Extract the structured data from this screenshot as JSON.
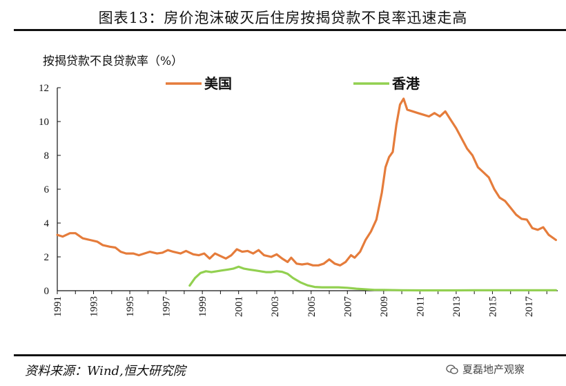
{
  "title": "图表13：房价泡沫破灭后住房按揭贷款不良率迅速走高",
  "source": "资料来源：Wind,恒大研究院",
  "watermark": "夏磊地产观察",
  "chart_data": {
    "type": "line",
    "ylabel": "按揭贷款不良贷款率（%）",
    "ylim": [
      0,
      12
    ],
    "yticks": [
      0,
      2,
      4,
      6,
      8,
      10,
      12
    ],
    "xlim": [
      1991,
      2018.6
    ],
    "xticks": [
      "1991",
      "1993",
      "1995",
      "1997",
      "1999",
      "2001",
      "2003",
      "2005",
      "2007",
      "2009",
      "2011",
      "2013",
      "2015",
      "2017"
    ],
    "legend_placement": "top",
    "series": [
      {
        "name": "美国",
        "color": "#E57C3B",
        "points": [
          [
            1991.0,
            3.3
          ],
          [
            1991.3,
            3.2
          ],
          [
            1991.7,
            3.4
          ],
          [
            1992.0,
            3.4
          ],
          [
            1992.4,
            3.1
          ],
          [
            1992.8,
            3.0
          ],
          [
            1993.2,
            2.9
          ],
          [
            1993.5,
            2.7
          ],
          [
            1993.9,
            2.6
          ],
          [
            1994.2,
            2.55
          ],
          [
            1994.5,
            2.3
          ],
          [
            1994.8,
            2.2
          ],
          [
            1995.2,
            2.2
          ],
          [
            1995.5,
            2.1
          ],
          [
            1995.8,
            2.2
          ],
          [
            1996.1,
            2.3
          ],
          [
            1996.5,
            2.2
          ],
          [
            1996.8,
            2.25
          ],
          [
            1997.1,
            2.4
          ],
          [
            1997.4,
            2.3
          ],
          [
            1997.8,
            2.2
          ],
          [
            1998.1,
            2.35
          ],
          [
            1998.5,
            2.15
          ],
          [
            1998.8,
            2.1
          ],
          [
            1999.1,
            2.2
          ],
          [
            1999.4,
            1.9
          ],
          [
            1999.7,
            2.2
          ],
          [
            2000.0,
            2.05
          ],
          [
            2000.3,
            1.9
          ],
          [
            2000.6,
            2.1
          ],
          [
            2000.9,
            2.45
          ],
          [
            2001.2,
            2.3
          ],
          [
            2001.5,
            2.35
          ],
          [
            2001.8,
            2.2
          ],
          [
            2002.1,
            2.4
          ],
          [
            2002.4,
            2.1
          ],
          [
            2002.8,
            2.0
          ],
          [
            2003.1,
            2.15
          ],
          [
            2003.4,
            1.9
          ],
          [
            2003.7,
            1.7
          ],
          [
            2003.9,
            1.95
          ],
          [
            2004.2,
            1.6
          ],
          [
            2004.5,
            1.55
          ],
          [
            2004.8,
            1.6
          ],
          [
            2005.1,
            1.5
          ],
          [
            2005.4,
            1.5
          ],
          [
            2005.7,
            1.6
          ],
          [
            2006.0,
            1.85
          ],
          [
            2006.3,
            1.6
          ],
          [
            2006.6,
            1.5
          ],
          [
            2006.9,
            1.7
          ],
          [
            2007.2,
            2.1
          ],
          [
            2007.4,
            1.95
          ],
          [
            2007.7,
            2.3
          ],
          [
            2008.0,
            3.0
          ],
          [
            2008.3,
            3.5
          ],
          [
            2008.6,
            4.2
          ],
          [
            2008.9,
            5.8
          ],
          [
            2009.1,
            7.3
          ],
          [
            2009.3,
            7.9
          ],
          [
            2009.5,
            8.2
          ],
          [
            2009.7,
            9.8
          ],
          [
            2009.9,
            11.0
          ],
          [
            2010.1,
            11.35
          ],
          [
            2010.3,
            10.7
          ],
          [
            2010.6,
            10.6
          ],
          [
            2010.9,
            10.5
          ],
          [
            2011.2,
            10.4
          ],
          [
            2011.5,
            10.3
          ],
          [
            2011.8,
            10.5
          ],
          [
            2012.1,
            10.3
          ],
          [
            2012.4,
            10.6
          ],
          [
            2012.7,
            10.1
          ],
          [
            2013.0,
            9.6
          ],
          [
            2013.3,
            9.0
          ],
          [
            2013.6,
            8.4
          ],
          [
            2013.9,
            8.0
          ],
          [
            2014.2,
            7.3
          ],
          [
            2014.5,
            7.0
          ],
          [
            2014.8,
            6.7
          ],
          [
            2015.1,
            6.0
          ],
          [
            2015.4,
            5.5
          ],
          [
            2015.7,
            5.3
          ],
          [
            2016.0,
            4.9
          ],
          [
            2016.3,
            4.5
          ],
          [
            2016.6,
            4.25
          ],
          [
            2016.9,
            4.2
          ],
          [
            2017.2,
            3.7
          ],
          [
            2017.5,
            3.6
          ],
          [
            2017.8,
            3.75
          ],
          [
            2018.1,
            3.3
          ],
          [
            2018.5,
            3.0
          ]
        ]
      },
      {
        "name": "香港",
        "color": "#92D050",
        "points": [
          [
            1998.3,
            0.3
          ],
          [
            1998.6,
            0.75
          ],
          [
            1998.9,
            1.05
          ],
          [
            1999.2,
            1.15
          ],
          [
            1999.5,
            1.1
          ],
          [
            1999.8,
            1.15
          ],
          [
            2000.1,
            1.2
          ],
          [
            2000.4,
            1.25
          ],
          [
            2000.7,
            1.3
          ],
          [
            2001.0,
            1.42
          ],
          [
            2001.3,
            1.3
          ],
          [
            2001.6,
            1.25
          ],
          [
            2001.9,
            1.2
          ],
          [
            2002.2,
            1.15
          ],
          [
            2002.5,
            1.1
          ],
          [
            2002.8,
            1.1
          ],
          [
            2003.1,
            1.15
          ],
          [
            2003.4,
            1.12
          ],
          [
            2003.7,
            1.0
          ],
          [
            2004.0,
            0.75
          ],
          [
            2004.4,
            0.5
          ],
          [
            2004.8,
            0.32
          ],
          [
            2005.2,
            0.22
          ],
          [
            2005.6,
            0.2
          ],
          [
            2006.0,
            0.2
          ],
          [
            2006.5,
            0.2
          ],
          [
            2007.0,
            0.17
          ],
          [
            2007.5,
            0.12
          ],
          [
            2008.0,
            0.08
          ],
          [
            2008.5,
            0.05
          ],
          [
            2009.0,
            0.05
          ],
          [
            2010.0,
            0.03
          ],
          [
            2011.0,
            0.02
          ],
          [
            2012.0,
            0.02
          ],
          [
            2013.0,
            0.02
          ],
          [
            2014.0,
            0.03
          ],
          [
            2015.0,
            0.03
          ],
          [
            2016.0,
            0.03
          ],
          [
            2017.0,
            0.03
          ],
          [
            2018.0,
            0.03
          ],
          [
            2018.5,
            0.03
          ]
        ]
      }
    ]
  }
}
